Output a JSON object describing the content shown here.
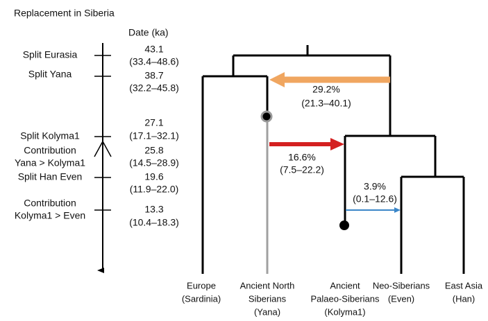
{
  "title": "Replacement in Siberia",
  "date_header": "Date (ka)",
  "events": [
    {
      "label": [
        "Split Eurasia"
      ],
      "date": "43.1",
      "range": "(33.4–48.6)"
    },
    {
      "label": [
        "Split Yana"
      ],
      "date": "38.7",
      "range": "(32.2–45.8)"
    },
    {
      "label": [
        "Split Kolyma1"
      ],
      "date": "27.1",
      "range": "(17.1–32.1)"
    },
    {
      "label": [
        "Contribution",
        "Yana > Kolyma1"
      ],
      "date": "25.8",
      "range": "(14.5–28.9)"
    },
    {
      "label": [
        "Split Han Even"
      ],
      "date": "19.6",
      "range": "(11.9–22.0)"
    },
    {
      "label": [
        "Contribution",
        "Kolyma1 > Even"
      ],
      "date": "13.3",
      "range": "(10.4–18.3)"
    }
  ],
  "admixtures": [
    {
      "percent": "29.2%",
      "range": "(21.3–40.1)"
    },
    {
      "percent": "16.6%",
      "range": "(7.5–22.2)"
    },
    {
      "percent": "3.9%",
      "range": "(0.1–12.6)"
    }
  ],
  "populations": [
    {
      "lines": [
        "Europe",
        "(Sardinia)"
      ]
    },
    {
      "lines": [
        "Ancient North",
        "Siberians",
        "(Yana)"
      ]
    },
    {
      "lines": [
        "Ancient",
        "Palaeo-Siberians",
        "(Kolyma1)"
      ]
    },
    {
      "lines": [
        "Neo-Siberians",
        "(Even)"
      ]
    },
    {
      "lines": [
        "East Asia",
        "(Han)"
      ]
    }
  ]
}
